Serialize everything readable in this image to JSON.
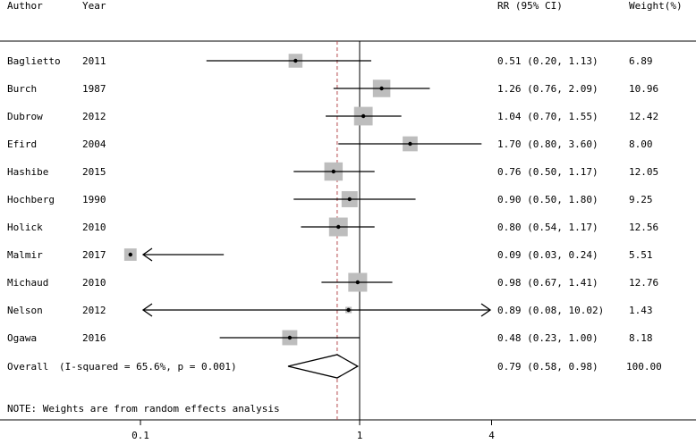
{
  "headers": {
    "author": "Author",
    "year": "Year",
    "rr": "RR (95% CI)",
    "weight": "Weight(%)"
  },
  "overall": {
    "label": "Overall",
    "heterogeneity": "(I-squared = 65.6%, p = 0.001)",
    "ci_text": "0.79 (0.58, 0.98)",
    "weight_text": "100.00"
  },
  "note": "NOTE: Weights are from random effects analysis",
  "chart_data": {
    "type": "forest",
    "x_scale": "log",
    "x_ticks": [
      0.1,
      1,
      4
    ],
    "x_tick_labels": [
      "0.1",
      "1",
      "4"
    ],
    "xlim": [
      0.037,
      4
    ],
    "null_line": 1,
    "pooled_line": 0.79,
    "studies": [
      {
        "author": "Baglietto",
        "year": "2011",
        "rr": 0.51,
        "lo": 0.2,
        "hi": 1.13,
        "weight": 6.89,
        "ci_text": "0.51 (0.20, 1.13)",
        "weight_text": "6.89"
      },
      {
        "author": "Burch",
        "year": "1987",
        "rr": 1.26,
        "lo": 0.76,
        "hi": 2.09,
        "weight": 10.96,
        "ci_text": "1.26 (0.76, 2.09)",
        "weight_text": "10.96"
      },
      {
        "author": "Dubrow",
        "year": "2012",
        "rr": 1.04,
        "lo": 0.7,
        "hi": 1.55,
        "weight": 12.42,
        "ci_text": "1.04 (0.70, 1.55)",
        "weight_text": "12.42"
      },
      {
        "author": "Efird",
        "year": "2004",
        "rr": 1.7,
        "lo": 0.8,
        "hi": 3.6,
        "weight": 8.0,
        "ci_text": "1.70 (0.80, 3.60)",
        "weight_text": "8.00"
      },
      {
        "author": "Hashibe",
        "year": "2015",
        "rr": 0.76,
        "lo": 0.5,
        "hi": 1.17,
        "weight": 12.05,
        "ci_text": "0.76 (0.50, 1.17)",
        "weight_text": "12.05"
      },
      {
        "author": "Hochberg",
        "year": "1990",
        "rr": 0.9,
        "lo": 0.5,
        "hi": 1.8,
        "weight": 9.25,
        "ci_text": "0.90 (0.50, 1.80)",
        "weight_text": "9.25"
      },
      {
        "author": "Holick",
        "year": "2010",
        "rr": 0.8,
        "lo": 0.54,
        "hi": 1.17,
        "weight": 12.56,
        "ci_text": "0.80 (0.54, 1.17)",
        "weight_text": "12.56"
      },
      {
        "author": "Malmir",
        "year": "2017",
        "rr": 0.09,
        "lo": 0.03,
        "hi": 0.24,
        "weight": 5.51,
        "ci_text": "0.09 (0.03, 0.24)",
        "weight_text": "5.51"
      },
      {
        "author": "Michaud",
        "year": "2010",
        "rr": 0.98,
        "lo": 0.67,
        "hi": 1.41,
        "weight": 12.76,
        "ci_text": "0.98 (0.67, 1.41)",
        "weight_text": "12.76"
      },
      {
        "author": "Nelson",
        "year": "2012",
        "rr": 0.89,
        "lo": 0.08,
        "hi": 10.02,
        "weight": 1.43,
        "ci_text": "0.89 (0.08, 10.02)",
        "weight_text": "1.43"
      },
      {
        "author": "Ogawa",
        "year": "2016",
        "rr": 0.48,
        "lo": 0.23,
        "hi": 1.0,
        "weight": 8.18,
        "ci_text": "0.48 (0.23, 1.00)",
        "weight_text": "8.18"
      }
    ],
    "pooled": {
      "rr": 0.79,
      "lo": 0.58,
      "hi": 0.98
    }
  }
}
